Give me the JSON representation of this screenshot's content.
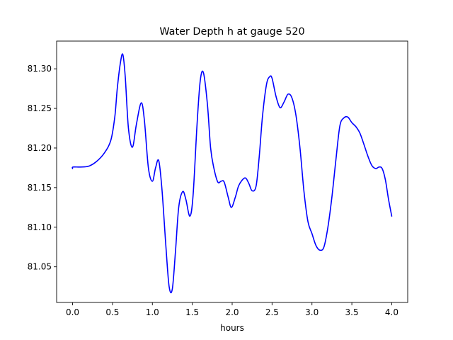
{
  "chart_data": {
    "type": "line",
    "title": "Water Depth h at gauge 520",
    "xlabel": "hours",
    "ylabel": "",
    "xlim": [
      -0.2,
      4.2
    ],
    "ylim": [
      81.005,
      81.335
    ],
    "grid": false,
    "x_ticks": [
      0.0,
      0.5,
      1.0,
      1.5,
      2.0,
      2.5,
      3.0,
      3.5,
      4.0
    ],
    "x_tick_labels": [
      "0.0",
      "0.5",
      "1.0",
      "1.5",
      "2.0",
      "2.5",
      "3.0",
      "3.5",
      "4.0"
    ],
    "y_ticks": [
      81.05,
      81.1,
      81.15,
      81.2,
      81.25,
      81.3
    ],
    "y_tick_labels": [
      "81.05",
      "81.10",
      "81.15",
      "81.20",
      "81.25",
      "81.30"
    ],
    "series": [
      {
        "color": "#0000ff",
        "x": [
          0.0,
          0.005,
          0.1,
          0.2,
          0.3,
          0.4,
          0.48,
          0.53,
          0.56,
          0.6,
          0.63,
          0.66,
          0.7,
          0.75,
          0.8,
          0.86,
          0.9,
          0.95,
          1.0,
          1.04,
          1.08,
          1.12,
          1.17,
          1.21,
          1.25,
          1.29,
          1.33,
          1.38,
          1.42,
          1.47,
          1.51,
          1.56,
          1.6,
          1.64,
          1.69,
          1.73,
          1.77,
          1.82,
          1.86,
          1.9,
          1.95,
          1.99,
          2.04,
          2.08,
          2.13,
          2.17,
          2.21,
          2.25,
          2.3,
          2.34,
          2.38,
          2.43,
          2.47,
          2.5,
          2.55,
          2.6,
          2.65,
          2.7,
          2.75,
          2.8,
          2.85,
          2.9,
          2.95,
          3.0,
          3.05,
          3.1,
          3.15,
          3.2,
          3.25,
          3.3,
          3.35,
          3.4,
          3.45,
          3.5,
          3.55,
          3.6,
          3.65,
          3.7,
          3.75,
          3.8,
          3.84,
          3.88,
          3.92,
          3.96,
          4.0
        ],
        "y": [
          81.174,
          81.176,
          81.176,
          81.177,
          81.183,
          81.194,
          81.21,
          81.24,
          81.275,
          81.308,
          81.318,
          81.29,
          81.225,
          81.201,
          81.23,
          81.257,
          81.235,
          81.175,
          81.158,
          81.175,
          81.184,
          81.148,
          81.075,
          81.025,
          81.022,
          81.07,
          81.125,
          81.145,
          81.135,
          81.114,
          81.14,
          81.23,
          81.285,
          81.295,
          81.255,
          81.2,
          81.175,
          81.157,
          81.158,
          81.157,
          81.138,
          81.125,
          81.138,
          81.152,
          81.16,
          81.162,
          81.155,
          81.146,
          81.152,
          81.19,
          81.24,
          81.28,
          81.29,
          81.288,
          81.265,
          81.251,
          81.258,
          81.268,
          81.263,
          81.241,
          81.2,
          81.145,
          81.107,
          81.092,
          81.077,
          81.071,
          81.075,
          81.1,
          81.138,
          81.185,
          81.228,
          81.238,
          81.239,
          81.232,
          81.227,
          81.219,
          81.205,
          81.19,
          81.178,
          81.174,
          81.176,
          81.174,
          81.16,
          81.135,
          81.114
        ]
      }
    ]
  }
}
